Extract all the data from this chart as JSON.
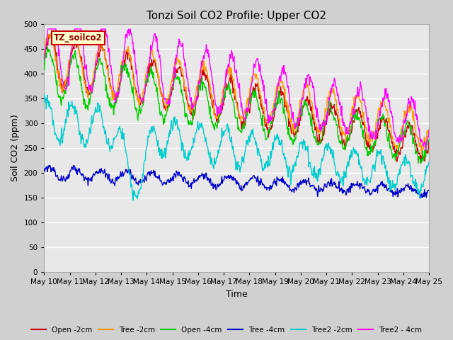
{
  "title": "Tonzi Soil CO2 Profile: Upper CO2",
  "xlabel": "Time",
  "ylabel": "Soil CO2 (ppm)",
  "ylim": [
    0,
    500
  ],
  "yticks": [
    0,
    50,
    100,
    150,
    200,
    250,
    300,
    350,
    400,
    450,
    500
  ],
  "xtick_labels": [
    "May 10",
    "May 11",
    "May 12",
    "May 13",
    "May 14",
    "May 15",
    "May 16",
    "May 17",
    "May 18",
    "May 19",
    "May 20",
    "May 21",
    "May 22",
    "May 23",
    "May 24",
    "May 25"
  ],
  "plot_bg_color": "#e8e8e8",
  "fig_bg_color": "#d0d0d0",
  "grid_color": "#ffffff",
  "legend_label": "TZ_soilco2",
  "legend_box_facecolor": "#ffffcc",
  "legend_box_edgecolor": "#cc0000",
  "series_colors": [
    "#cc0000",
    "#ff9900",
    "#00cc00",
    "#0000cc",
    "#00cccc",
    "#ff00ff"
  ],
  "series_labels": [
    "Open -2cm",
    "Tree -2cm",
    "Open -4cm",
    "Tree -4cm",
    "Tree2 -2cm",
    "Tree2 - 4cm"
  ],
  "title_fontsize": 11,
  "axis_label_fontsize": 9,
  "tick_fontsize": 7.5,
  "n_points": 720
}
